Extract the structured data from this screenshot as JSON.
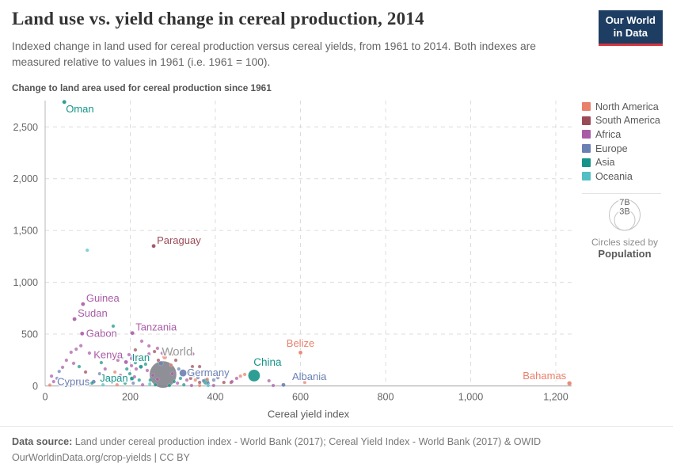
{
  "header": {
    "title": "Land use vs. yield change in cereal production, 2014",
    "subtitle": "Indexed change in land used for cereal production versus cereal yields, from 1961 to 2014. Both indexes are measured relative to values in 1961 (i.e. 1961 = 100).",
    "logo": {
      "line1": "Our World",
      "line2": "in Data"
    }
  },
  "chart_data": {
    "type": "scatter",
    "title": "Change to land area used for cereal production since 1961",
    "xlabel": "Cereal yield index",
    "ylabel": "Change to land area used for cereal production since 1961",
    "xlim": [
      0,
      1237
    ],
    "ylim": [
      0,
      2760
    ],
    "grid": "dashed",
    "legend_position": "right",
    "x_ticks": [
      {
        "v": 0,
        "label": "0"
      },
      {
        "v": 200,
        "label": "200"
      },
      {
        "v": 400,
        "label": "400"
      },
      {
        "v": 600,
        "label": "600"
      },
      {
        "v": 800,
        "label": "800"
      },
      {
        "v": 1000,
        "label": "1,000"
      },
      {
        "v": 1200,
        "label": "1,200"
      }
    ],
    "y_ticks": [
      {
        "v": 0,
        "label": "0"
      },
      {
        "v": 500,
        "label": "500"
      },
      {
        "v": 1000,
        "label": "1,000"
      },
      {
        "v": 1500,
        "label": "1,500"
      },
      {
        "v": 2000,
        "label": "2,000"
      },
      {
        "v": 2500,
        "label": "2,500"
      }
    ],
    "regions": [
      {
        "code": "NA",
        "name": "North America",
        "color": "#E8806B"
      },
      {
        "code": "SA",
        "name": "South America",
        "color": "#9B4A57"
      },
      {
        "code": "AF",
        "name": "Africa",
        "color": "#A95CA6"
      },
      {
        "code": "EU",
        "name": "Europe",
        "color": "#6A7FB3"
      },
      {
        "code": "AS",
        "name": "Asia",
        "color": "#169488"
      },
      {
        "code": "OC",
        "name": "Oceania",
        "color": "#52BFC4"
      }
    ],
    "world_color": "#83838D",
    "size_legend": {
      "big_label": "7B",
      "small_label": "3B",
      "caption1": "Circles sized by",
      "caption2": "Population"
    },
    "series": {
      "labeled": [
        {
          "x": 45,
          "y": 2740,
          "c": "AS",
          "r": 2.5,
          "label": "Oman",
          "place": "below-right"
        },
        {
          "x": 255,
          "y": 1350,
          "c": "SA",
          "r": 2.5,
          "label": "Paraguay",
          "place": "right-up"
        },
        {
          "x": 89,
          "y": 790,
          "c": "AF",
          "r": 2.5,
          "label": "Guinea",
          "place": "right-up"
        },
        {
          "x": 69,
          "y": 645,
          "c": "AF",
          "r": 2.5,
          "label": "Sudan",
          "place": "right-up"
        },
        {
          "x": 87,
          "y": 505,
          "c": "AF",
          "r": 2.5,
          "label": "Gabon",
          "place": "right"
        },
        {
          "x": 205,
          "y": 510,
          "c": "AF",
          "r": 2.5,
          "label": "Tanzania",
          "place": "right-up"
        },
        {
          "x": 190,
          "y": 230,
          "c": "AF",
          "r": 2.5,
          "label": "Kenya",
          "place": "left-up"
        },
        {
          "x": 225,
          "y": 185,
          "c": "AS",
          "r": 2.5,
          "label": "Iran",
          "place": "above"
        },
        {
          "x": 204,
          "y": 72,
          "c": "AS",
          "r": 2.5,
          "label": "Japan",
          "place": "left"
        },
        {
          "x": 114,
          "y": 40,
          "c": "EU",
          "r": 2.5,
          "label": "Cyprus",
          "place": "left"
        },
        {
          "x": 277,
          "y": 110,
          "c": "WORLD",
          "r": 17,
          "label": "World",
          "place": "above",
          "ldx": 18,
          "ldy": -2,
          "lsize": 15
        },
        {
          "x": 324,
          "y": 125,
          "c": "EU",
          "r": 4.5,
          "label": "Germany",
          "place": "right"
        },
        {
          "x": 491,
          "y": 100,
          "c": "AS",
          "r": 7.5,
          "label": "China",
          "place": "above",
          "ldx": 17,
          "lsize": 13.5
        },
        {
          "x": 560,
          "y": 10,
          "c": "EU",
          "r": 2.5,
          "label": "Albania",
          "place": "above-right"
        },
        {
          "x": 600,
          "y": 322,
          "c": "NA",
          "r": 2.5,
          "label": "Belize",
          "place": "above"
        },
        {
          "x": 1232,
          "y": 25,
          "c": "NA",
          "r": 2.8,
          "label": "Bahamas",
          "place": "left-up"
        }
      ],
      "minor": [
        [
          11,
          8,
          "NA"
        ],
        [
          76,
          27,
          "NA"
        ],
        [
          164,
          134,
          "NA"
        ],
        [
          169,
          11,
          "NA"
        ],
        [
          281,
          279,
          "NA",
          3
        ],
        [
          296,
          202,
          "NA"
        ],
        [
          353,
          57,
          "NA"
        ],
        [
          363,
          4,
          "NA"
        ],
        [
          381,
          65,
          "NA"
        ],
        [
          424,
          80,
          "NA"
        ],
        [
          459,
          95,
          "NA"
        ],
        [
          469,
          111,
          "NA"
        ],
        [
          610,
          34,
          "NA"
        ],
        [
          95,
          134,
          "SA"
        ],
        [
          212,
          348,
          "SA"
        ],
        [
          257,
          332,
          "SA"
        ],
        [
          266,
          248,
          "SA"
        ],
        [
          307,
          248,
          "SA"
        ],
        [
          342,
          73,
          "SA"
        ],
        [
          363,
          34,
          "SA"
        ],
        [
          300,
          309,
          "SA"
        ],
        [
          346,
          187,
          "SA"
        ],
        [
          363,
          187,
          "SA"
        ],
        [
          437,
          34,
          "SA"
        ],
        [
          420,
          34,
          "SA"
        ],
        [
          15,
          95,
          "AF"
        ],
        [
          20,
          42,
          "AF"
        ],
        [
          50,
          248,
          "AF"
        ],
        [
          61,
          325,
          "AF"
        ],
        [
          73,
          355,
          "AF"
        ],
        [
          84,
          388,
          "AF"
        ],
        [
          67,
          218,
          "AF"
        ],
        [
          104,
          317,
          "AF"
        ],
        [
          119,
          286,
          "AF"
        ],
        [
          99,
          57,
          "AF"
        ],
        [
          141,
          164,
          "AF"
        ],
        [
          171,
          248,
          "AF"
        ],
        [
          177,
          103,
          "AF"
        ],
        [
          197,
          302,
          "AF"
        ],
        [
          206,
          287,
          "AF"
        ],
        [
          218,
          271,
          "AF"
        ],
        [
          203,
          264,
          "AF"
        ],
        [
          203,
          195,
          "AF"
        ],
        [
          214,
          164,
          "AF"
        ],
        [
          210,
          88,
          "AF"
        ],
        [
          229,
          11,
          "AF"
        ],
        [
          227,
          432,
          "AF"
        ],
        [
          244,
          386,
          "AF"
        ],
        [
          244,
          309,
          "AF"
        ],
        [
          264,
          363,
          "AF"
        ],
        [
          240,
          149,
          "AF"
        ],
        [
          253,
          103,
          "AF"
        ],
        [
          264,
          65,
          "AF"
        ],
        [
          299,
          118,
          "AF"
        ],
        [
          311,
          27,
          "AF"
        ],
        [
          333,
          57,
          "AF"
        ],
        [
          344,
          4,
          "AF"
        ],
        [
          396,
          4,
          "AF"
        ],
        [
          439,
          42,
          "AF"
        ],
        [
          450,
          73,
          "AF"
        ],
        [
          275,
          317,
          "AF"
        ],
        [
          526,
          50,
          "AF"
        ],
        [
          536,
          4,
          "AF"
        ],
        [
          41,
          180,
          "AF"
        ],
        [
          347,
          309,
          "AF"
        ],
        [
          28,
          73,
          "EU"
        ],
        [
          128,
          118,
          "EU"
        ],
        [
          207,
          27,
          "EU"
        ],
        [
          272,
          218,
          "EU",
          3
        ],
        [
          314,
          164,
          "EU"
        ],
        [
          337,
          134,
          "EU"
        ],
        [
          348,
          103,
          "EU"
        ],
        [
          359,
          80,
          "EU"
        ],
        [
          372,
          50,
          "EU"
        ],
        [
          383,
          27,
          "EU"
        ],
        [
          396,
          57,
          "EU"
        ],
        [
          406,
          80,
          "EU"
        ],
        [
          33,
          140,
          "EU"
        ],
        [
          80,
          187,
          "AS"
        ],
        [
          110,
          27,
          "AS"
        ],
        [
          132,
          225,
          "AS"
        ],
        [
          149,
          73,
          "AS"
        ],
        [
          160,
          577,
          "AS"
        ],
        [
          188,
          27,
          "AS"
        ],
        [
          212,
          225,
          "AS"
        ],
        [
          192,
          164,
          "AS"
        ],
        [
          199,
          118,
          "AS"
        ],
        [
          221,
          57,
          "AS"
        ],
        [
          236,
          210,
          "AS"
        ],
        [
          247,
          57,
          "AS"
        ],
        [
          259,
          11,
          "AS"
        ],
        [
          292,
          4,
          "AS"
        ],
        [
          303,
          42,
          "AS"
        ],
        [
          318,
          73,
          "AS"
        ],
        [
          326,
          11,
          "AS"
        ],
        [
          378,
          42,
          "AS",
          4
        ],
        [
          285,
          340,
          "AS"
        ],
        [
          99,
          1310,
          "OC"
        ],
        [
          136,
          11,
          "OC"
        ],
        [
          182,
          271,
          "OC"
        ],
        [
          246,
          19,
          "OC"
        ],
        [
          383,
          4,
          "OC"
        ]
      ]
    }
  },
  "footer": {
    "source_label": "Data source:",
    "source_text": " Land under cereal production index - World Bank (2017); Cereal Yield Index - World Bank (2017) & OWID",
    "license_line": "OurWorldinData.org/crop-yields | CC BY"
  }
}
